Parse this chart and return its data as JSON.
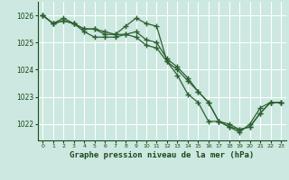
{
  "title": "Graphe pression niveau de la mer (hPa)",
  "bg_color": "#cce8e0",
  "grid_color": "#ffffff",
  "line_color": "#2d6030",
  "text_color": "#1a4a1a",
  "xlim": [
    -0.5,
    23.5
  ],
  "ylim": [
    1021.4,
    1026.5
  ],
  "yticks": [
    1022,
    1023,
    1024,
    1025,
    1026
  ],
  "xticks": [
    0,
    1,
    2,
    3,
    4,
    5,
    6,
    7,
    8,
    9,
    10,
    11,
    12,
    13,
    14,
    15,
    16,
    17,
    18,
    19,
    20,
    21,
    22,
    23
  ],
  "series": [
    [
      1026.0,
      1025.7,
      1025.8,
      1025.7,
      1025.5,
      1025.5,
      1025.3,
      1025.3,
      1025.3,
      1025.4,
      1025.1,
      1025.0,
      1024.4,
      1024.1,
      1023.7,
      1023.2,
      1022.8,
      1022.1,
      1022.0,
      1021.8,
      1021.9,
      1022.4,
      1022.8,
      1022.8
    ],
    [
      1026.0,
      1025.7,
      1025.9,
      1025.7,
      1025.5,
      1025.5,
      1025.4,
      1025.3,
      1025.6,
      1025.9,
      1025.7,
      1025.6,
      1024.3,
      1023.8,
      1023.1,
      1022.8,
      1022.1,
      1022.1,
      1021.9,
      1021.7,
      1022.0,
      1022.6,
      1022.8,
      1022.8
    ],
    [
      1026.0,
      1025.7,
      1025.8,
      1025.7,
      1025.4,
      1025.2,
      1025.2,
      1025.2,
      1025.3,
      1025.2,
      1024.9,
      1024.8,
      1024.3,
      1024.0,
      1023.6,
      1023.2,
      1022.8,
      1022.1,
      1021.9,
      1021.8,
      1021.9,
      1022.4,
      1022.8,
      1022.8
    ]
  ]
}
